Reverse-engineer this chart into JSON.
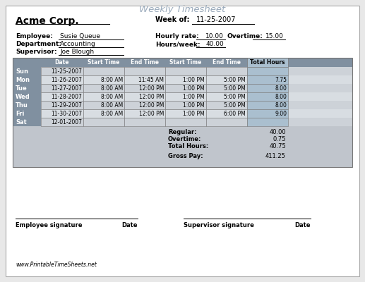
{
  "title": "Weekly Timesheet",
  "company": "Acme Corp.",
  "week_of_label": "Week of:",
  "week_of_value": "11-25-2007",
  "employee_label": "Employee:",
  "employee_value": "Susie Queue",
  "department_label": "Department:",
  "department_value": "Accounting",
  "supervisor_label": "Supervisor:",
  "supervisor_value": "Joe Blough",
  "hourly_rate_label": "Hourly rate:",
  "hourly_rate_value": "10.00",
  "overtime_label": "Overtime:",
  "overtime_value": "15.00",
  "hours_week_label": "Hours/week:",
  "hours_week_value": "40.00",
  "table_header": [
    "",
    "Date",
    "Start Time",
    "End Time",
    "Start Time",
    "End Time",
    "Total Hours"
  ],
  "days": [
    "Sun",
    "Mon",
    "Tue",
    "Wed",
    "Thu",
    "Fri",
    "Sat"
  ],
  "dates": [
    "11-25-2007",
    "11-26-2007",
    "11-27-2007",
    "11-28-2007",
    "11-29-2007",
    "11-30-2007",
    "12-01-2007"
  ],
  "start1": [
    "",
    "8:00 AM",
    "8:00 AM",
    "8:00 AM",
    "8:00 AM",
    "8:00 AM",
    ""
  ],
  "end1": [
    "",
    "11:45 AM",
    "12:00 PM",
    "12:00 PM",
    "12:00 PM",
    "12:00 PM",
    ""
  ],
  "start2": [
    "",
    "1:00 PM",
    "1:00 PM",
    "1:00 PM",
    "1:00 PM",
    "1:00 PM",
    ""
  ],
  "end2": [
    "",
    "5:00 PM",
    "5:00 PM",
    "5:00 PM",
    "5:00 PM",
    "6:00 PM",
    ""
  ],
  "total_hours": [
    "",
    "7.75",
    "8.00",
    "8.00",
    "8.00",
    "9.00",
    ""
  ],
  "regular_label": "Regular:",
  "regular_value": "40.00",
  "overtime_sum_label": "Overtime:",
  "overtime_sum_value": "0.75",
  "total_hours_label": "Total Hours:",
  "total_hours_value": "40.75",
  "gross_pay_label": "Gross Pay:",
  "gross_pay_value": "411.25",
  "sig_employee": "Employee signature",
  "sig_date1": "Date",
  "sig_supervisor": "Supervisor signature",
  "sig_date2": "Date",
  "footer": "www.PrintableTimeSheets.net",
  "bg_color": "#c0c5cc",
  "header_color": "#8090a0",
  "total_col_color": "#aabfcf",
  "title_color": "#9aaabb",
  "border_color": "#777777",
  "card_bg": "#ffffff",
  "outer_bg": "#e8e8e8"
}
